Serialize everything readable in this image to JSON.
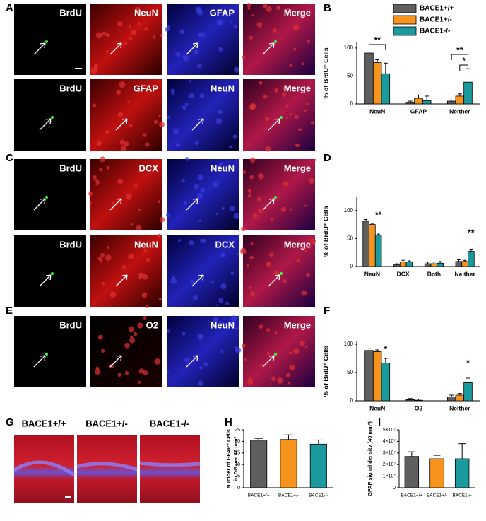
{
  "figure": {
    "panel_labels": [
      "A",
      "B",
      "C",
      "D",
      "E",
      "F",
      "G",
      "H",
      "I"
    ],
    "images": [
      [
        "BrdU",
        "NeuN",
        "GFAP",
        "Merge"
      ],
      [
        "BrdU",
        "GFAP",
        "NeuN",
        "Merge"
      ],
      [
        "BrdU",
        "DCX",
        "NeuN",
        "Merge"
      ],
      [
        "BrdU",
        "NeuN",
        "DCX",
        "Merge"
      ],
      [
        "BrdU",
        "O2",
        "NeuN",
        "Merge"
      ]
    ],
    "genotypes": [
      "BACE1+/+",
      "BACE1+/-",
      "BACE1-/-"
    ]
  },
  "chart_data": [
    {
      "type": "bar",
      "ylabel": [
        "% of BrdU⁺ Cells"
      ],
      "categories": [
        "NeuN",
        "GFAP",
        "Neither"
      ],
      "series": [
        {
          "name": "BACE1+/+",
          "color": "#5f5f5f",
          "values": [
            91,
            3,
            5
          ],
          "errors": [
            2,
            2,
            2
          ]
        },
        {
          "name": "BACE1+/-",
          "color": "#f7941d",
          "values": [
            74,
            10,
            14
          ],
          "errors": [
            5,
            6,
            4
          ]
        },
        {
          "name": "BACE1-/-",
          "color": "#1a9a9e",
          "values": [
            54,
            6,
            39
          ],
          "errors": [
            19,
            8,
            24
          ]
        }
      ],
      "ylim": [
        0,
        110
      ],
      "yticks": [
        0,
        50,
        100
      ],
      "annotations": [
        "**",
        "**",
        "*"
      ],
      "legend": "top-right"
    },
    {
      "type": "bar",
      "ylabel": [
        "% of BrdU⁺ Cells"
      ],
      "categories": [
        "NeuN",
        "DCX",
        "Both",
        "Neither"
      ],
      "series": [
        {
          "color": "#5f5f5f",
          "values": [
            81,
            3,
            5,
            9
          ],
          "errors": [
            3,
            2,
            3,
            3
          ]
        },
        {
          "color": "#f7941d",
          "values": [
            75,
            8,
            5,
            9
          ],
          "errors": [
            2,
            3,
            3,
            2
          ]
        },
        {
          "color": "#1a9a9e",
          "values": [
            56,
            8,
            6,
            27
          ],
          "errors": [
            2,
            2,
            3,
            4
          ]
        }
      ],
      "ylim": [
        0,
        125
      ],
      "yticks": [
        0,
        50,
        100
      ],
      "annotations": [
        "**",
        "**"
      ]
    },
    {
      "type": "bar",
      "ylabel": [
        "% of BrdU⁺ Cells"
      ],
      "categories": [
        "NeuN",
        "O2",
        "Neither"
      ],
      "series": [
        {
          "color": "#5f5f5f",
          "values": [
            89,
            2,
            7
          ],
          "errors": [
            3,
            2,
            3
          ]
        },
        {
          "color": "#f7941d",
          "values": [
            87,
            1,
            10
          ],
          "errors": [
            3,
            2,
            3
          ]
        },
        {
          "color": "#1a9a9e",
          "values": [
            67,
            0,
            32
          ],
          "errors": [
            8,
            0,
            8
          ]
        }
      ],
      "ylim": [
        0,
        105
      ],
      "yticks": [
        0,
        50,
        100
      ],
      "annotations": [
        "*",
        "*"
      ]
    },
    {
      "type": "bar",
      "ylabel": [
        "Number of GFAP⁺ Cells",
        "in DG per 40 mm²"
      ],
      "categories": [
        "BACE1+/+",
        "BACE1+/-",
        "BACE1-/-"
      ],
      "values": [
        20.5,
        20.8,
        18.8
      ],
      "errors": [
        0.8,
        2,
        1.8
      ],
      "colors": [
        "#5f5f5f",
        "#f7941d",
        "#1a9a9e"
      ],
      "ylim": [
        0,
        25
      ],
      "yticks": [
        0,
        5,
        10,
        15,
        20,
        25
      ]
    },
    {
      "type": "bar",
      "ylabel": [
        "GFAP signal density (40 mm²)"
      ],
      "categories": [
        "BACE1+/+",
        "BACE1+/-",
        "BACE1-/-"
      ],
      "values": [
        27000000,
        25000000,
        25000000
      ],
      "errors": [
        4000000,
        3000000,
        13000000
      ],
      "colors": [
        "#5f5f5f",
        "#f7941d",
        "#1a9a9e"
      ],
      "ylim": [
        0,
        50000000
      ],
      "yticks": [
        0,
        {
          "value": 10000000,
          "label": "1×10⁷"
        },
        {
          "value": 20000000,
          "label": "2×10⁷"
        },
        {
          "value": 30000000,
          "label": "3×10⁷"
        },
        {
          "value": 40000000,
          "label": "4×10⁷"
        },
        {
          "value": 50000000,
          "label": "5×10⁷"
        }
      ]
    }
  ]
}
